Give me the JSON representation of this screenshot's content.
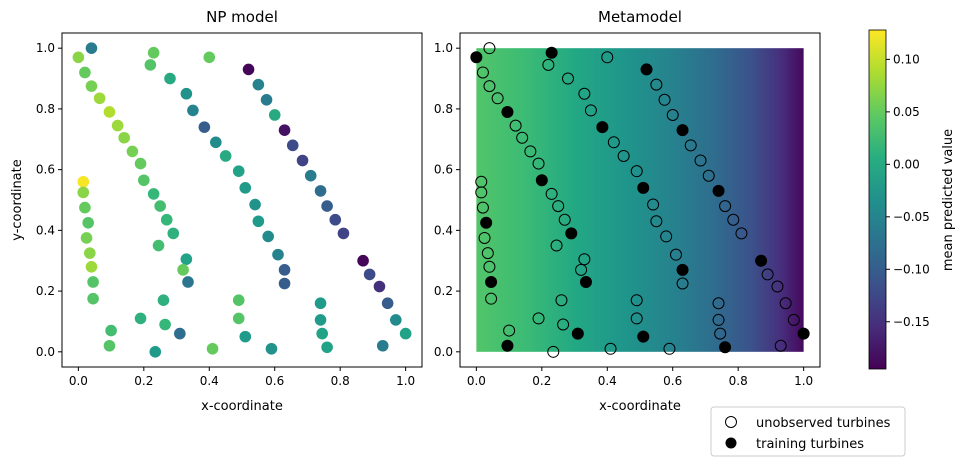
{
  "chart_data": {
    "type": "scatter",
    "colormap": "viridis",
    "panels": [
      {
        "title": "NP model",
        "xlabel": "x-coordinate",
        "ylabel": "y-coordinate",
        "xlim": [
          -0.05,
          1.05
        ],
        "ylim": [
          -0.05,
          1.05
        ],
        "xticks": [
          "0.0",
          "0.2",
          "0.4",
          "0.6",
          "0.8",
          "1.0"
        ],
        "yticks": [
          "0.0",
          "0.2",
          "0.4",
          "0.6",
          "0.8",
          "1.0"
        ]
      },
      {
        "title": "Metamodel",
        "xlabel": "x-coordinate",
        "xlim": [
          -0.05,
          1.05
        ],
        "ylim": [
          -0.05,
          1.05
        ],
        "xticks": [
          "0.0",
          "0.2",
          "0.4",
          "0.6",
          "0.8",
          "1.0"
        ],
        "yticks": [
          "0.0",
          "0.2",
          "0.4",
          "0.6",
          "0.8",
          "1.0"
        ],
        "background_field": {
          "x_range": [
            0,
            1
          ],
          "y_range": [
            0,
            1
          ],
          "value_at_x0": 0.06,
          "value_at_x1": -0.17
        }
      }
    ],
    "colorbar": {
      "label": "mean predicted value",
      "vmin": -0.195,
      "vmax": 0.128,
      "ticks": [
        "0.10",
        "0.05",
        "0.00",
        "−0.05",
        "−0.10",
        "−0.15"
      ],
      "tick_values": [
        0.1,
        0.05,
        0.0,
        -0.05,
        -0.1,
        -0.15
      ]
    },
    "legend": {
      "location": "lower-right",
      "entries": [
        {
          "label": "unobserved turbines",
          "marker": "open-circle"
        },
        {
          "label": "training turbines",
          "marker": "filled-circle"
        }
      ]
    },
    "points": [
      {
        "x": 0.04,
        "y": 1.0,
        "v": -0.06,
        "training": false
      },
      {
        "x": 0.0,
        "y": 0.97,
        "v": 0.07,
        "training": true
      },
      {
        "x": 0.02,
        "y": 0.92,
        "v": 0.05,
        "training": false
      },
      {
        "x": 0.04,
        "y": 0.875,
        "v": 0.06,
        "training": false
      },
      {
        "x": 0.065,
        "y": 0.835,
        "v": 0.08,
        "training": false
      },
      {
        "x": 0.095,
        "y": 0.79,
        "v": 0.09,
        "training": true
      },
      {
        "x": 0.12,
        "y": 0.745,
        "v": 0.08,
        "training": false
      },
      {
        "x": 0.14,
        "y": 0.705,
        "v": 0.07,
        "training": false
      },
      {
        "x": 0.165,
        "y": 0.66,
        "v": 0.06,
        "training": false
      },
      {
        "x": 0.19,
        "y": 0.62,
        "v": 0.05,
        "training": false
      },
      {
        "x": 0.2,
        "y": 0.565,
        "v": 0.04,
        "training": true
      },
      {
        "x": 0.23,
        "y": 0.52,
        "v": 0.02,
        "training": false
      },
      {
        "x": 0.25,
        "y": 0.48,
        "v": 0.03,
        "training": false
      },
      {
        "x": 0.27,
        "y": 0.435,
        "v": 0.02,
        "training": false
      },
      {
        "x": 0.29,
        "y": 0.39,
        "v": 0.01,
        "training": true
      },
      {
        "x": 0.245,
        "y": 0.35,
        "v": 0.03,
        "training": false
      },
      {
        "x": 0.23,
        "y": 0.985,
        "v": 0.05,
        "training": true
      },
      {
        "x": 0.22,
        "y": 0.945,
        "v": 0.04,
        "training": false
      },
      {
        "x": 0.28,
        "y": 0.9,
        "v": 0.0,
        "training": false
      },
      {
        "x": 0.33,
        "y": 0.85,
        "v": -0.03,
        "training": false
      },
      {
        "x": 0.35,
        "y": 0.795,
        "v": -0.05,
        "training": false
      },
      {
        "x": 0.385,
        "y": 0.74,
        "v": -0.1,
        "training": true
      },
      {
        "x": 0.42,
        "y": 0.69,
        "v": -0.04,
        "training": false
      },
      {
        "x": 0.45,
        "y": 0.645,
        "v": 0.0,
        "training": false
      },
      {
        "x": 0.49,
        "y": 0.595,
        "v": -0.01,
        "training": false
      },
      {
        "x": 0.51,
        "y": 0.54,
        "v": -0.02,
        "training": true
      },
      {
        "x": 0.54,
        "y": 0.485,
        "v": -0.03,
        "training": false
      },
      {
        "x": 0.55,
        "y": 0.43,
        "v": -0.02,
        "training": false
      },
      {
        "x": 0.58,
        "y": 0.38,
        "v": -0.04,
        "training": false
      },
      {
        "x": 0.61,
        "y": 0.32,
        "v": -0.05,
        "training": false
      },
      {
        "x": 0.63,
        "y": 0.27,
        "v": -0.1,
        "training": true
      },
      {
        "x": 0.63,
        "y": 0.225,
        "v": -0.1,
        "training": false
      },
      {
        "x": 0.4,
        "y": 0.97,
        "v": 0.05,
        "training": false
      },
      {
        "x": 0.52,
        "y": 0.93,
        "v": -0.19,
        "training": true
      },
      {
        "x": 0.55,
        "y": 0.88,
        "v": -0.05,
        "training": false
      },
      {
        "x": 0.575,
        "y": 0.83,
        "v": -0.06,
        "training": false
      },
      {
        "x": 0.6,
        "y": 0.78,
        "v": 0.0,
        "training": false
      },
      {
        "x": 0.63,
        "y": 0.73,
        "v": -0.18,
        "training": true
      },
      {
        "x": 0.655,
        "y": 0.68,
        "v": -0.12,
        "training": false
      },
      {
        "x": 0.685,
        "y": 0.63,
        "v": -0.13,
        "training": false
      },
      {
        "x": 0.71,
        "y": 0.58,
        "v": -0.06,
        "training": false
      },
      {
        "x": 0.74,
        "y": 0.53,
        "v": -0.08,
        "training": true
      },
      {
        "x": 0.76,
        "y": 0.48,
        "v": -0.1,
        "training": false
      },
      {
        "x": 0.785,
        "y": 0.435,
        "v": -0.12,
        "training": false
      },
      {
        "x": 0.81,
        "y": 0.39,
        "v": -0.13,
        "training": false
      },
      {
        "x": 0.87,
        "y": 0.3,
        "v": -0.19,
        "training": true
      },
      {
        "x": 0.89,
        "y": 0.255,
        "v": -0.12,
        "training": false
      },
      {
        "x": 0.92,
        "y": 0.215,
        "v": -0.15,
        "training": false
      },
      {
        "x": 0.945,
        "y": 0.16,
        "v": -0.1,
        "training": false
      },
      {
        "x": 0.97,
        "y": 0.105,
        "v": -0.04,
        "training": false
      },
      {
        "x": 1.0,
        "y": 0.06,
        "v": -0.01,
        "training": true
      },
      {
        "x": 0.93,
        "y": 0.02,
        "v": -0.06,
        "training": false
      },
      {
        "x": 0.015,
        "y": 0.56,
        "v": 0.125,
        "training": false
      },
      {
        "x": 0.015,
        "y": 0.525,
        "v": 0.07,
        "training": false
      },
      {
        "x": 0.02,
        "y": 0.475,
        "v": 0.05,
        "training": false
      },
      {
        "x": 0.03,
        "y": 0.425,
        "v": 0.04,
        "training": true
      },
      {
        "x": 0.025,
        "y": 0.375,
        "v": 0.06,
        "training": false
      },
      {
        "x": 0.035,
        "y": 0.325,
        "v": 0.07,
        "training": false
      },
      {
        "x": 0.04,
        "y": 0.28,
        "v": 0.08,
        "training": false
      },
      {
        "x": 0.045,
        "y": 0.23,
        "v": 0.04,
        "training": true
      },
      {
        "x": 0.045,
        "y": 0.175,
        "v": 0.04,
        "training": false
      },
      {
        "x": 0.1,
        "y": 0.07,
        "v": 0.03,
        "training": false
      },
      {
        "x": 0.095,
        "y": 0.02,
        "v": 0.04,
        "training": true
      },
      {
        "x": 0.19,
        "y": 0.11,
        "v": 0.01,
        "training": false
      },
      {
        "x": 0.26,
        "y": 0.17,
        "v": 0.01,
        "training": false
      },
      {
        "x": 0.265,
        "y": 0.09,
        "v": 0.02,
        "training": false
      },
      {
        "x": 0.235,
        "y": 0.0,
        "v": -0.02,
        "training": false
      },
      {
        "x": 0.31,
        "y": 0.06,
        "v": -0.08,
        "training": true
      },
      {
        "x": 0.33,
        "y": 0.305,
        "v": -0.01,
        "training": false
      },
      {
        "x": 0.32,
        "y": 0.27,
        "v": 0.05,
        "training": false
      },
      {
        "x": 0.335,
        "y": 0.23,
        "v": -0.07,
        "training": true
      },
      {
        "x": 0.41,
        "y": 0.01,
        "v": 0.05,
        "training": false
      },
      {
        "x": 0.49,
        "y": 0.17,
        "v": 0.04,
        "training": false
      },
      {
        "x": 0.49,
        "y": 0.11,
        "v": 0.04,
        "training": false
      },
      {
        "x": 0.51,
        "y": 0.05,
        "v": -0.02,
        "training": true
      },
      {
        "x": 0.59,
        "y": 0.01,
        "v": -0.03,
        "training": false
      },
      {
        "x": 0.74,
        "y": 0.16,
        "v": -0.02,
        "training": false
      },
      {
        "x": 0.74,
        "y": 0.105,
        "v": -0.02,
        "training": false
      },
      {
        "x": 0.745,
        "y": 0.06,
        "v": -0.01,
        "training": false
      },
      {
        "x": 0.76,
        "y": 0.015,
        "v": -0.01,
        "training": true
      }
    ]
  }
}
